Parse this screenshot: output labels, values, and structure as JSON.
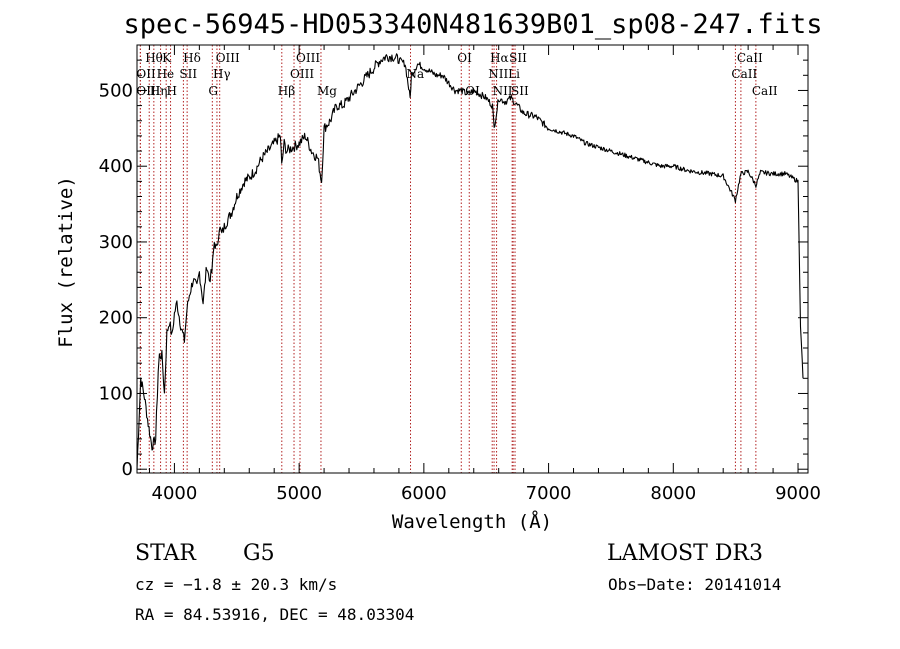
{
  "chart_data": {
    "type": "line",
    "title": "spec-56945-HD053340N481639B01_sp08-247.fits",
    "xlabel": "Wavelength (Å)",
    "ylabel": "Flux (relative)",
    "xlim": [
      3700,
      9080
    ],
    "ylim": [
      -5,
      560
    ],
    "xticks": [
      4000,
      5000,
      6000,
      7000,
      8000,
      9000
    ],
    "yticks": [
      0,
      100,
      200,
      300,
      400,
      500
    ],
    "grid": false,
    "series": [
      {
        "x": [
          3700,
          3730,
          3760,
          3790,
          3820,
          3850,
          3870,
          3880,
          3900,
          3920,
          3940,
          3960,
          3980,
          4000,
          4020,
          4050,
          4080,
          4100,
          4120,
          4150,
          4180,
          4200,
          4230,
          4260,
          4280,
          4300,
          4320,
          4340,
          4360,
          4380,
          4400,
          4430,
          4460,
          4500,
          4530,
          4560,
          4600,
          4650,
          4700,
          4750,
          4800,
          4850,
          4860,
          4880,
          4900,
          4950,
          5000,
          5050,
          5100,
          5150,
          5180,
          5200,
          5250,
          5300,
          5350,
          5400,
          5450,
          5500,
          5550,
          5600,
          5650,
          5700,
          5750,
          5800,
          5850,
          5890,
          5900,
          5950,
          6000,
          6050,
          6100,
          6150,
          6200,
          6250,
          6300,
          6350,
          6400,
          6450,
          6500,
          6550,
          6563,
          6600,
          6650,
          6700,
          6750,
          6800,
          6900,
          7000,
          7100,
          7200,
          7300,
          7400,
          7500,
          7600,
          7700,
          7800,
          7900,
          8000,
          8100,
          8200,
          8300,
          8400,
          8498,
          8542,
          8600,
          8662,
          8700,
          8800,
          8900,
          8950,
          9000,
          9020,
          9040
        ],
        "y": [
          0,
          120,
          95,
          60,
          30,
          40,
          130,
          150,
          150,
          100,
          180,
          195,
          175,
          205,
          220,
          190,
          170,
          210,
          230,
          250,
          240,
          260,
          220,
          270,
          250,
          260,
          300,
          290,
          320,
          310,
          320,
          330,
          340,
          360,
          370,
          380,
          385,
          395,
          410,
          420,
          430,
          440,
          400,
          430,
          420,
          425,
          430,
          440,
          420,
          410,
          380,
          450,
          460,
          480,
          480,
          490,
          500,
          510,
          520,
          530,
          540,
          545,
          545,
          540,
          535,
          490,
          520,
          535,
          530,
          525,
          520,
          520,
          510,
          500,
          500,
          495,
          500,
          495,
          490,
          480,
          450,
          490,
          485,
          490,
          480,
          470,
          465,
          450,
          445,
          440,
          430,
          425,
          420,
          415,
          410,
          405,
          400,
          400,
          395,
          392,
          390,
          387,
          355,
          390,
          393,
          375,
          392,
          390,
          390,
          385,
          380,
          190,
          120
        ]
      }
    ],
    "spectral_lines": [
      {
        "name": "Hθ",
        "wavelength": 3798,
        "row": 1
      },
      {
        "name": "OII",
        "wavelength": 3727,
        "row": 2
      },
      {
        "name": "OIII",
        "wavelength": 3727,
        "row": 3
      },
      {
        "name": "He",
        "wavelength": 3889,
        "row": 2
      },
      {
        "name": "Hη",
        "wavelength": 3835,
        "row": 3
      },
      {
        "name": "K",
        "wavelength": 3934,
        "row": 1
      },
      {
        "name": "H",
        "wavelength": 3969,
        "row": 3
      },
      {
        "name": "Hδ",
        "wavelength": 4102,
        "row": 1
      },
      {
        "name": "SII",
        "wavelength": 4072,
        "row": 2
      },
      {
        "name": "OIII",
        "wavelength": 4363,
        "row": 1
      },
      {
        "name": "Hγ",
        "wavelength": 4341,
        "row": 2
      },
      {
        "name": "G",
        "wavelength": 4304,
        "row": 3
      },
      {
        "name": "Hβ",
        "wavelength": 4861,
        "row": 3
      },
      {
        "name": "OIII",
        "wavelength": 5007,
        "row": 1
      },
      {
        "name": "OIII",
        "wavelength": 4959,
        "row": 2
      },
      {
        "name": "Mg",
        "wavelength": 5175,
        "row": 3
      },
      {
        "name": "Na",
        "wavelength": 5893,
        "row": 2
      },
      {
        "name": "OI",
        "wavelength": 6300,
        "row": 1
      },
      {
        "name": "OI",
        "wavelength": 6364,
        "row": 3
      },
      {
        "name": "Hα",
        "wavelength": 6563,
        "row": 1
      },
      {
        "name": "NII",
        "wavelength": 6548,
        "row": 2
      },
      {
        "name": "NII",
        "wavelength": 6583,
        "row": 3
      },
      {
        "name": "SII",
        "wavelength": 6716,
        "row": 1
      },
      {
        "name": "Li",
        "wavelength": 6708,
        "row": 2
      },
      {
        "name": "SII",
        "wavelength": 6731,
        "row": 3
      },
      {
        "name": "CaII",
        "wavelength": 8542,
        "row": 1
      },
      {
        "name": "CaII",
        "wavelength": 8498,
        "row": 2
      },
      {
        "name": "CaII",
        "wavelength": 8662,
        "row": 3
      }
    ]
  },
  "info": {
    "class_label": "STAR",
    "subclass_label": "G5",
    "survey_label": "LAMOST DR3",
    "cz_text": "cz = −1.8 ± 20.3 km/s",
    "obs_date_text": "Obs−Date: 20141014",
    "radec_text": "RA =  84.53916, DEC =  48.03304"
  }
}
